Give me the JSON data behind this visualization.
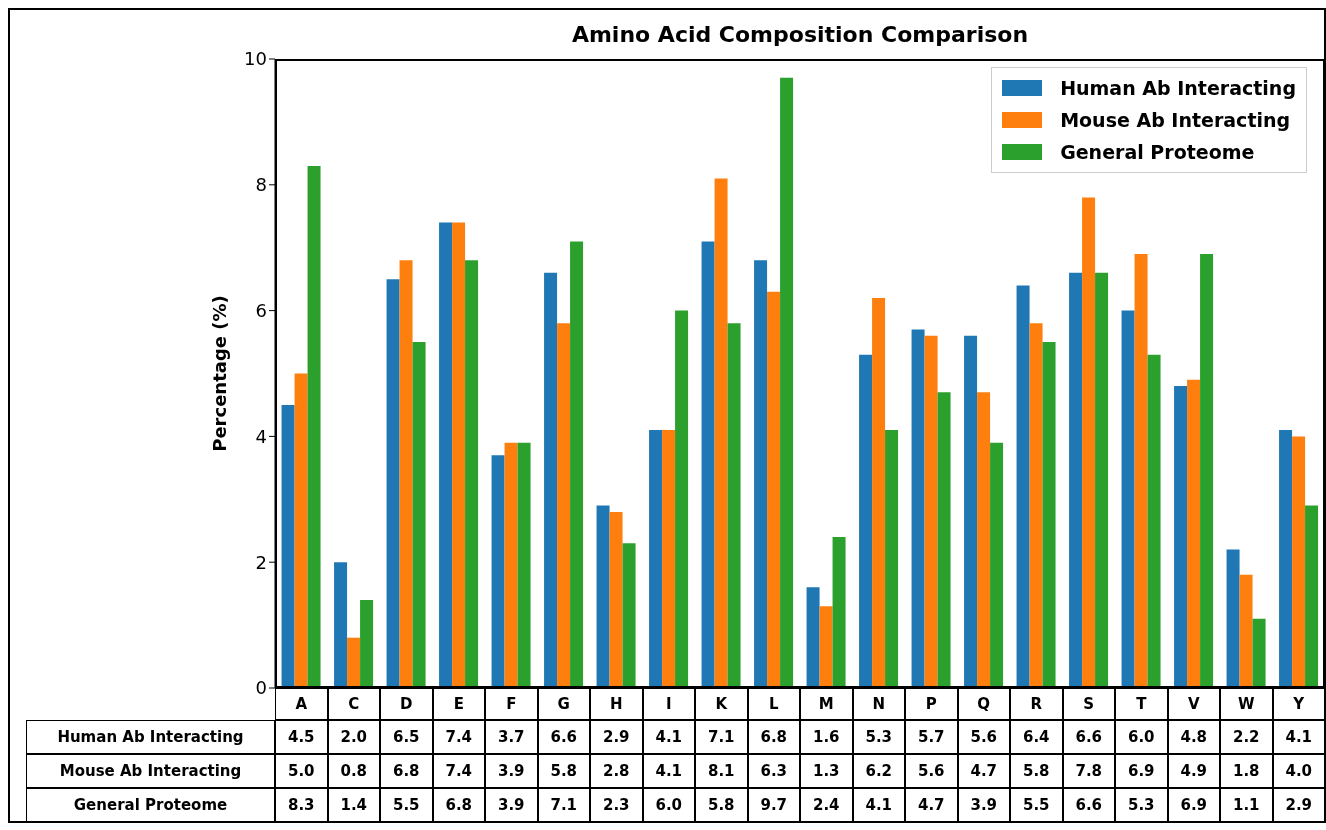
{
  "chart_data": {
    "type": "bar",
    "title": "Amino Acid Composition Comparison",
    "ylabel": "Percentage (%)",
    "categories": [
      "A",
      "C",
      "D",
      "E",
      "F",
      "G",
      "H",
      "I",
      "K",
      "L",
      "M",
      "N",
      "P",
      "Q",
      "R",
      "S",
      "T",
      "V",
      "W",
      "Y"
    ],
    "series": [
      {
        "name": "Human Ab Interacting",
        "color": "#1f77b4",
        "values": [
          4.5,
          2.0,
          6.5,
          7.4,
          3.7,
          6.6,
          2.9,
          4.1,
          7.1,
          6.8,
          1.6,
          5.3,
          5.7,
          5.6,
          6.4,
          6.6,
          6.0,
          4.8,
          2.2,
          4.1
        ],
        "value_labels": [
          "4.5",
          "2.0",
          "6.5",
          "7.4",
          "3.7",
          "6.6",
          "2.9",
          "4.1",
          "7.1",
          "6.8",
          "1.6",
          "5.3",
          "5.7",
          "5.6",
          "6.4",
          "6.6",
          "6.0",
          "4.8",
          "2.2",
          "4.1"
        ]
      },
      {
        "name": "Mouse Ab Interacting",
        "color": "#ff7f0e",
        "values": [
          5.0,
          0.8,
          6.8,
          7.4,
          3.9,
          5.8,
          2.8,
          4.1,
          8.1,
          6.3,
          1.3,
          6.2,
          5.6,
          4.7,
          5.8,
          7.8,
          6.9,
          4.9,
          1.8,
          4.0
        ],
        "value_labels": [
          "5.0",
          "0.8",
          "6.8",
          "7.4",
          "3.9",
          "5.8",
          "2.8",
          "4.1",
          "8.1",
          "6.3",
          "1.3",
          "6.2",
          "5.6",
          "4.7",
          "5.8",
          "7.8",
          "6.9",
          "4.9",
          "1.8",
          "4.0"
        ]
      },
      {
        "name": "General Proteome",
        "color": "#2ca02c",
        "values": [
          8.3,
          1.4,
          5.5,
          6.8,
          3.9,
          7.1,
          2.3,
          6.0,
          5.8,
          9.7,
          2.4,
          4.1,
          4.7,
          3.9,
          5.5,
          6.6,
          5.3,
          6.9,
          1.1,
          2.9
        ],
        "value_labels": [
          "8.3",
          "1.4",
          "5.5",
          "6.8",
          "3.9",
          "7.1",
          "2.3",
          "6.0",
          "5.8",
          "9.7",
          "2.4",
          "4.1",
          "4.7",
          "3.9",
          "5.5",
          "6.6",
          "5.3",
          "6.9",
          "1.1",
          "2.9"
        ]
      }
    ],
    "ylim": [
      0,
      10
    ],
    "yticks": [
      0,
      2,
      4,
      6,
      8,
      10
    ],
    "legend": "top right"
  }
}
